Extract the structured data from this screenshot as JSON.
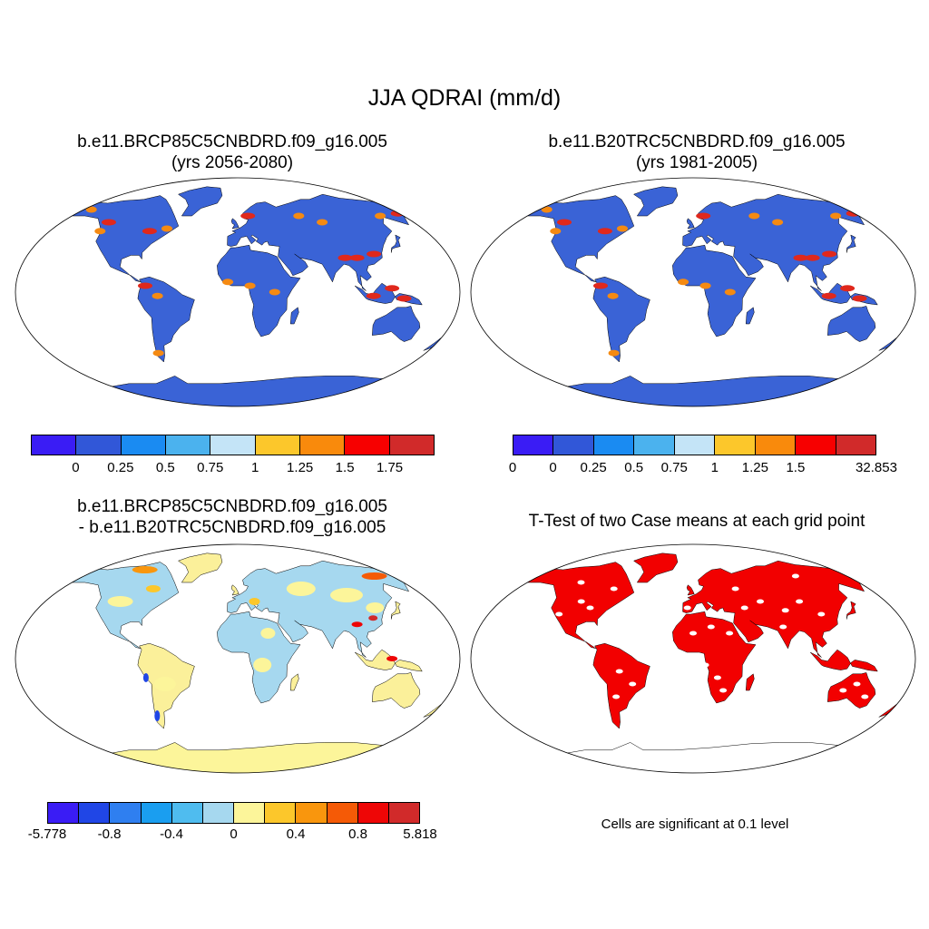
{
  "title": "JJA QDRAI (mm/d)",
  "panels": [
    {
      "id": "case1",
      "title_line1": "b.e11.BRCP85C5CNBDRD.f09_g16.005",
      "title_line2": "(yrs 2056-2080)",
      "colorbar": {
        "colors": [
          "#3a1cf5",
          "#3157d8",
          "#1a8bf2",
          "#4bb2ee",
          "#c4e4f7",
          "#fcc72b",
          "#f98a0c",
          "#f70000",
          "#d12a2a"
        ],
        "labels": [
          "0",
          "0.25",
          "0.5",
          "0.75",
          "1",
          "1.25",
          "1.5",
          "1.75"
        ]
      }
    },
    {
      "id": "case2",
      "title_line1": "b.e11.B20TRC5CNBDRD.f09_g16.005",
      "title_line2": "(yrs 1981-2005)",
      "colorbar": {
        "colors": [
          "#3a1cf5",
          "#3157d8",
          "#1a8bf2",
          "#4bb2ee",
          "#c4e4f7",
          "#fcc72b",
          "#f98a0c",
          "#f70000",
          "#d12a2a"
        ],
        "labels": [
          "0",
          "0",
          "0.25",
          "0.5",
          "0.75",
          "1",
          "1.25",
          "1.5",
          "32.853"
        ]
      }
    },
    {
      "id": "difference",
      "title_line1": "b.e11.BRCP85C5CNBDRD.f09_g16.005",
      "title_line2": "- b.e11.B20TRC5CNBDRD.f09_g16.005",
      "colorbar": {
        "colors": [
          "#3a1cf5",
          "#2046e6",
          "#2f7ff0",
          "#1a9ef0",
          "#4fbcef",
          "#a6d8ef",
          "#fcf59a",
          "#fcc72b",
          "#f9960d",
          "#f55a06",
          "#ee0606",
          "#d12a2a"
        ],
        "labels": [
          "-5.778",
          "-0.8",
          "-0.4",
          "0",
          "0.4",
          "0.8",
          "5.818"
        ]
      }
    },
    {
      "id": "ttest",
      "title_line1": "T-Test of two Case means at each grid point",
      "note": "Cells are significant at 0.1 level"
    }
  ],
  "colors": {
    "mean_land": "#3a63d6",
    "mean_high": "#e0281c",
    "mean_mid": "#f58a12",
    "diff_land_pos": "#fbf09a",
    "diff_land_neg": "#a6d8ef",
    "ttest_sig": "#f20000",
    "antarctica_diff": "#fcf59a"
  }
}
